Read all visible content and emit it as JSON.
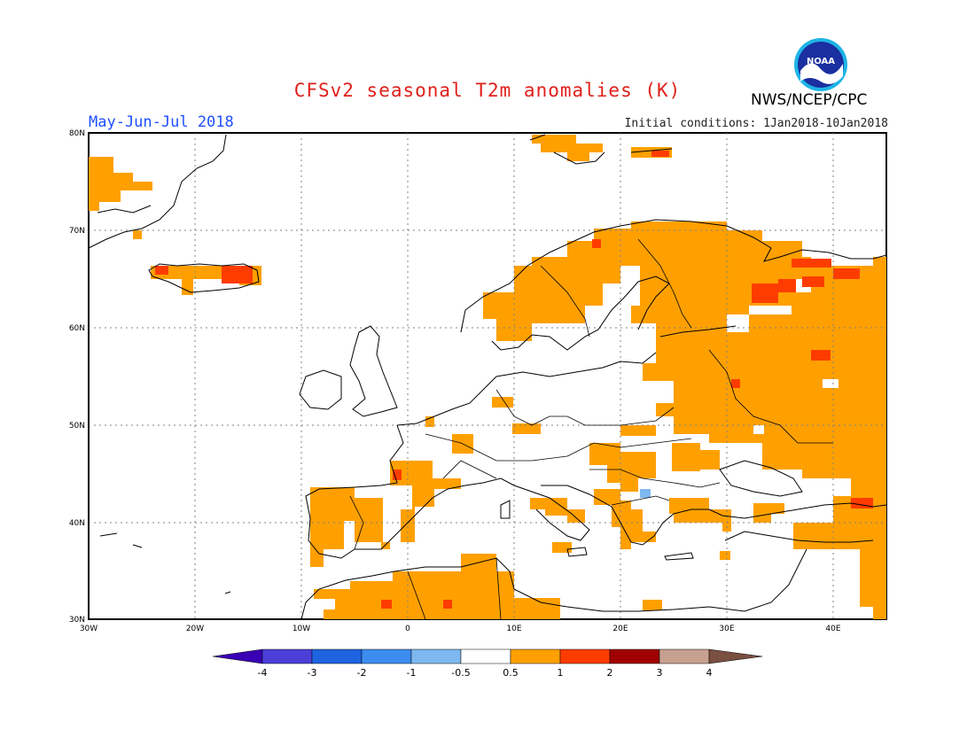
{
  "header": {
    "title": "CFSv2 seasonal T2m anomalies (K)",
    "period": "May-Jun-Jul 2018",
    "initial_conditions": "Initial conditions: 1Jan2018-10Jan2018",
    "agency": "NWS/NCEP/CPC",
    "logo_text": "NOAA"
  },
  "map": {
    "lon_labels": [
      "30W",
      "20W",
      "10W",
      "0",
      "10E",
      "20E",
      "30E",
      "40E"
    ],
    "lat_labels": [
      "80N",
      "70N",
      "60N",
      "50N",
      "40N",
      "30N"
    ],
    "lon_range": [
      -30,
      45
    ],
    "lat_range": [
      30,
      80
    ]
  },
  "legend": {
    "labels": [
      "-4",
      "-3",
      "-2",
      "-1",
      "-0.5",
      "0.5",
      "1",
      "2",
      "3",
      "4"
    ],
    "colors": [
      "#3a00b4",
      "#4a40d8",
      "#1e64e0",
      "#3c8cf0",
      "#7eb8f0",
      "#ffffff",
      "#ffa000",
      "#ff3c00",
      "#a00000",
      "#c8a090",
      "#7a5040"
    ]
  }
}
